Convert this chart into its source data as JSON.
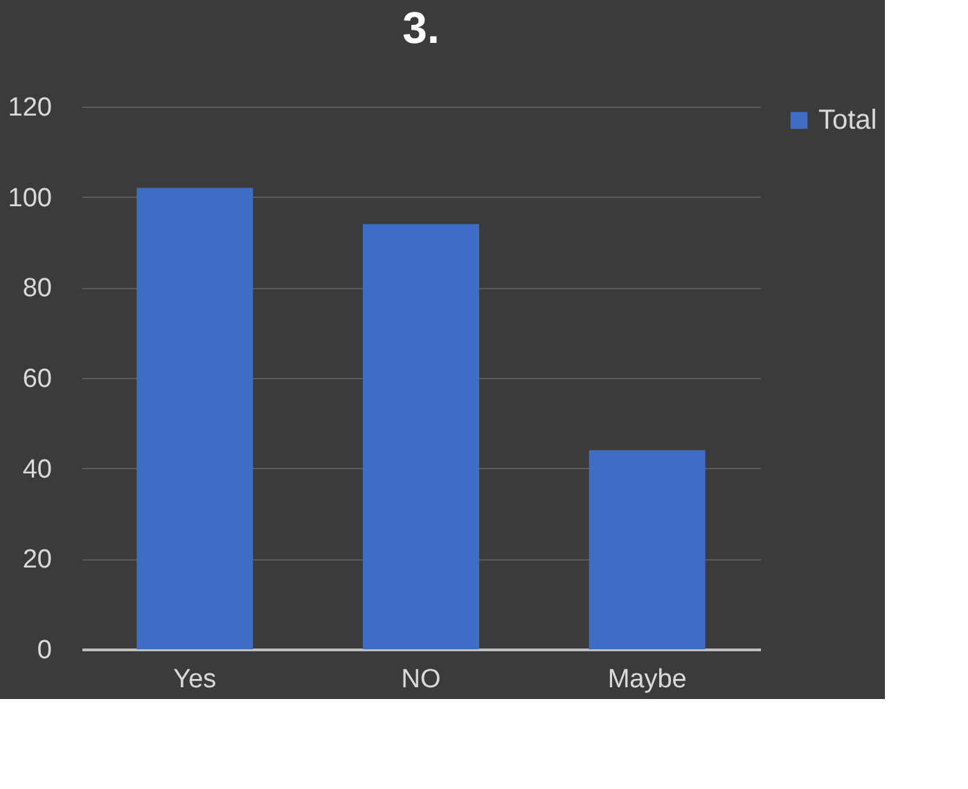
{
  "chart_data": {
    "type": "bar",
    "title": "3.",
    "categories": [
      "Yes",
      "NO",
      "Maybe"
    ],
    "series": [
      {
        "name": "Total",
        "color": "#3f6cc4",
        "values": [
          102,
          94,
          44
        ]
      }
    ],
    "ylim": [
      0,
      120
    ],
    "yticks": [
      0,
      20,
      40,
      60,
      80,
      100,
      120
    ],
    "grid": "y",
    "legend": "right"
  }
}
